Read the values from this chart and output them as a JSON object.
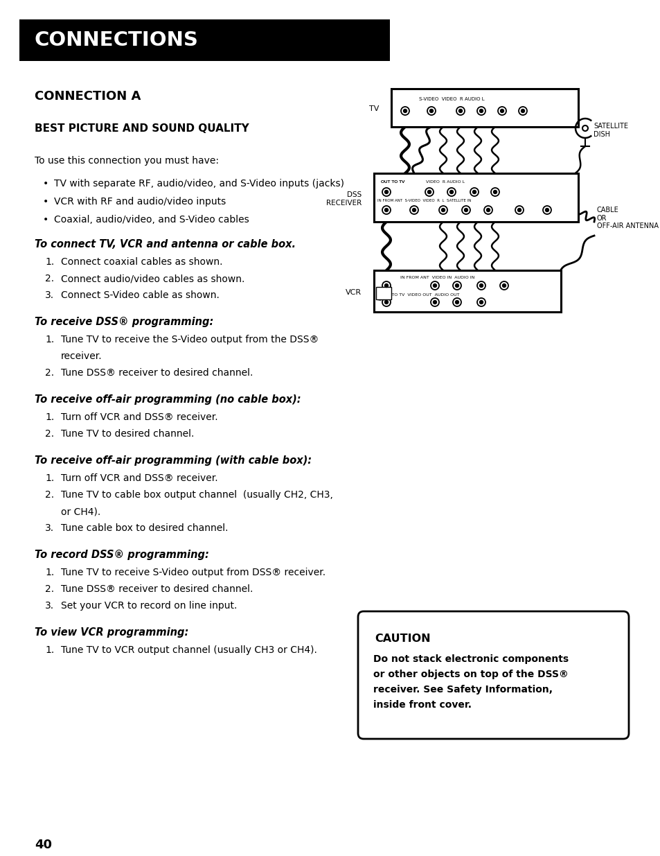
{
  "bg_color": "#ffffff",
  "header_bg": "#000000",
  "header_text": "CONNECTIONS",
  "header_text_color": "#ffffff",
  "page_number": "40",
  "section_title": "CONNECTION A",
  "subsection_title": "BEST PICTURE AND SOUND QUALITY",
  "intro_text": "To use this connection you must have:",
  "bullets": [
    "TV with separate RF, audio/video, and S-Video inputs (jacks)",
    "VCR with RF and audio/video inputs",
    "Coaxial, audio/video, and S-Video cables"
  ],
  "sections": [
    {
      "heading": "To connect TV, VCR and antenna or cable box.",
      "items": [
        [
          "Connect coaxial cables as shown."
        ],
        [
          "Connect audio/video cables as shown."
        ],
        [
          "Connect S-Video cable as shown."
        ]
      ]
    },
    {
      "heading": "To receive DSS® programming:",
      "items": [
        [
          "Tune TV to receive the S-Video output from the DSS®",
          "receiver."
        ],
        [
          "Tune DSS® receiver to desired channel."
        ]
      ]
    },
    {
      "heading": "To receive off-air programming (no cable box):",
      "items": [
        [
          "Turn off VCR and DSS® receiver."
        ],
        [
          "Tune TV to desired channel."
        ]
      ]
    },
    {
      "heading": "To receive off-air programming (with cable box):",
      "items": [
        [
          "Turn off VCR and DSS® receiver."
        ],
        [
          "Tune TV to cable box output channel  (usually CH2, CH3,",
          "or CH4)."
        ],
        [
          "Tune cable box to desired channel."
        ]
      ]
    },
    {
      "heading": "To record DSS® programming:",
      "items": [
        [
          "Tune TV to receive S-Video output from DSS® receiver."
        ],
        [
          "Tune DSS® receiver to desired channel."
        ],
        [
          "Set your VCR to record on line input."
        ]
      ]
    },
    {
      "heading": "To view VCR programming:",
      "items": [
        [
          "Tune TV to VCR output channel (usually CH3 or CH4)."
        ]
      ]
    }
  ],
  "caution_title": "CAUTION",
  "caution_text_lines": [
    "Do not stack electronic components",
    "or other objects on top of the DSS®",
    "receiver. See Safety Information,",
    "inside front cover."
  ]
}
